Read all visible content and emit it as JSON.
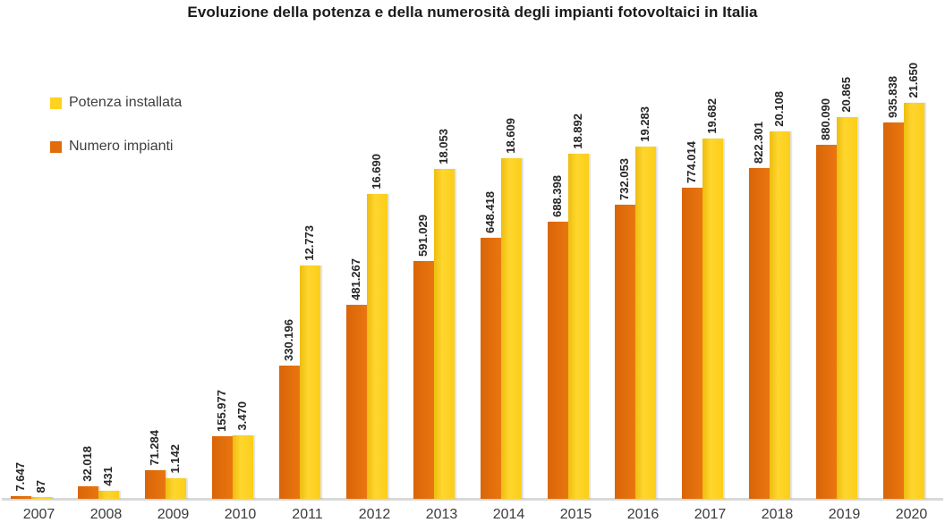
{
  "chart_data": {
    "type": "bar",
    "title": "Evoluzione della potenza e della numerosità degli impianti fotovoltaici in Italia",
    "categories": [
      "2007",
      "2008",
      "2009",
      "2010",
      "2011",
      "2012",
      "2013",
      "2014",
      "2015",
      "2016",
      "2017",
      "2018",
      "2019",
      "2020"
    ],
    "series": [
      {
        "name": "Numero impianti",
        "color": "#e26b0a",
        "values": [
          7647,
          32018,
          71284,
          155977,
          330196,
          481267,
          591029,
          648418,
          688398,
          732053,
          774014,
          822301,
          880090,
          935838
        ],
        "labels": [
          "7.647",
          "32.018",
          "71.284",
          "155.977",
          "330.196",
          "481.267",
          "591.029",
          "648.418",
          "688.398",
          "732.053",
          "774.014",
          "822.301",
          "880.090",
          "935.838"
        ],
        "hidden_axis_max": 1000000
      },
      {
        "name": "Potenza installata",
        "color": "#ffd21f",
        "values": [
          87,
          431,
          1142,
          3470,
          12773,
          16690,
          18053,
          18609,
          18892,
          19283,
          19682,
          20108,
          20865,
          21650
        ],
        "labels": [
          "87",
          "431",
          "1.142",
          "3.470",
          "12.773",
          "16.690",
          "18.053",
          "18.609",
          "18.892",
          "19.283",
          "19.682",
          "20.108",
          "20.865",
          "21.650"
        ],
        "hidden_axis_max": 22000
      }
    ],
    "legend": {
      "position": "top-left",
      "items": [
        {
          "label": "Potenza installata",
          "color": "#ffd21f"
        },
        {
          "label": "Numero impianti",
          "color": "#e26b0a"
        }
      ]
    },
    "grid": false,
    "value_labels": "rotated 90deg above bars",
    "x_axis_line_color": "#d9d9d9",
    "xlabel": "",
    "ylabel": ""
  }
}
